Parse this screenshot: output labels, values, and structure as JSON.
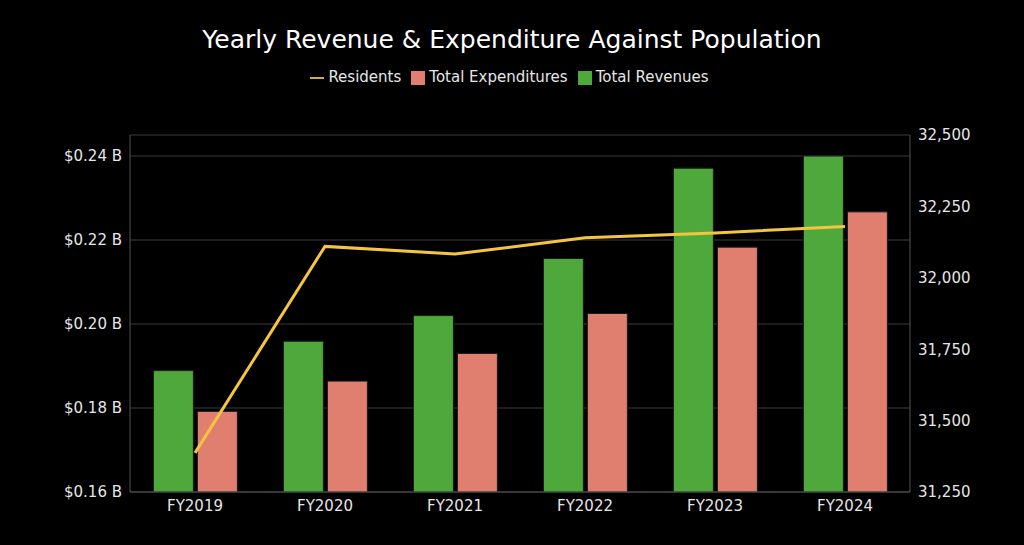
{
  "chart_data": {
    "type": "bar",
    "title": "Yearly Revenue & Expenditure Against Population",
    "categories": [
      "FY2019",
      "FY2020",
      "FY2021",
      "FY2022",
      "FY2023",
      "FY2024"
    ],
    "series": [
      {
        "name": "Total Revenues",
        "type": "bar",
        "color": "#4ea83c",
        "values": [
          0.1889,
          0.1959,
          0.202,
          0.2156,
          0.2371,
          0.24
        ]
      },
      {
        "name": "Total Expenditures",
        "type": "bar",
        "color": "#e07f6f",
        "values": [
          0.1792,
          0.1864,
          0.193,
          0.2025,
          0.2183,
          0.2267
        ]
      },
      {
        "name": "Residents",
        "type": "line",
        "axis": "y2",
        "color": "#f5c542",
        "values": [
          31387,
          32110,
          32083,
          32140,
          32157,
          32180
        ]
      }
    ],
    "ylim": [
      0.16,
      0.245
    ],
    "yticks": [
      {
        "value": 0.16,
        "label": "$0.16 B"
      },
      {
        "value": 0.18,
        "label": "$0.18 B"
      },
      {
        "value": 0.2,
        "label": "$0.20 B"
      },
      {
        "value": 0.22,
        "label": "$0.22 B"
      },
      {
        "value": 0.24,
        "label": "$0.24 B"
      }
    ],
    "y2lim": [
      31250,
      32500
    ],
    "y2ticks": [
      {
        "value": 31250,
        "label": "31,250"
      },
      {
        "value": 31500,
        "label": "31,500"
      },
      {
        "value": 31750,
        "label": "31,750"
      },
      {
        "value": 32000,
        "label": "32,000"
      },
      {
        "value": 32250,
        "label": "32,250"
      },
      {
        "value": 32500,
        "label": "32,500"
      }
    ],
    "grid": true,
    "legend": "top"
  }
}
